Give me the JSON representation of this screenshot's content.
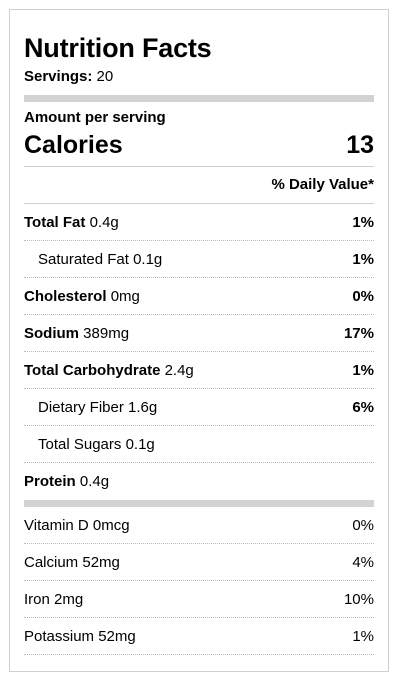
{
  "label": {
    "title": "Nutrition Facts",
    "servings_label": "Servings:",
    "servings_value": "20",
    "amount_per_serving": "Amount per serving",
    "calories_label": "Calories",
    "calories_value": "13",
    "daily_value_header": "% Daily Value*"
  },
  "nutrients": [
    {
      "name": "Total Fat",
      "amount": "0.4g",
      "pct": "1%",
      "bold": true,
      "indent": false
    },
    {
      "name": "Saturated Fat",
      "amount": "0.1g",
      "pct": "1%",
      "bold": false,
      "indent": true
    },
    {
      "name": "Cholesterol",
      "amount": "0mg",
      "pct": "0%",
      "bold": true,
      "indent": false
    },
    {
      "name": "Sodium",
      "amount": "389mg",
      "pct": "17%",
      "bold": true,
      "indent": false
    },
    {
      "name": "Total Carbohydrate",
      "amount": "2.4g",
      "pct": "1%",
      "bold": true,
      "indent": false
    },
    {
      "name": "Dietary Fiber",
      "amount": "1.6g",
      "pct": "6%",
      "bold": false,
      "indent": true
    },
    {
      "name": "Total Sugars",
      "amount": "0.1g",
      "pct": "",
      "bold": false,
      "indent": true
    },
    {
      "name": "Protein",
      "amount": "0.4g",
      "pct": "",
      "bold": true,
      "indent": false
    }
  ],
  "vitamins": [
    {
      "name": "Vitamin D",
      "amount": "0mcg",
      "pct": "0%"
    },
    {
      "name": "Calcium",
      "amount": "52mg",
      "pct": "4%"
    },
    {
      "name": "Iron",
      "amount": "2mg",
      "pct": "10%"
    },
    {
      "name": "Potassium",
      "amount": "52mg",
      "pct": "1%"
    }
  ]
}
